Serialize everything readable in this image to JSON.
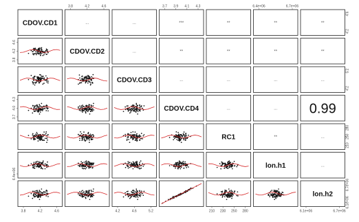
{
  "chart_data": {
    "type": "scatter",
    "title": "",
    "variables": [
      "CDOV.CD1",
      "CDOV.CD2",
      "CDOV.CD3",
      "CDOV.CD4",
      "RC1",
      "lon.h1",
      "lon.h2"
    ],
    "top_axis_ticks": {
      "1": [
        "3.8",
        "4.2",
        "4.6"
      ],
      "3": [
        "3.7",
        "3.9",
        "4.1",
        "4.3"
      ],
      "5": [
        "6.4e+06",
        "6.7e+06"
      ]
    },
    "bottom_axis_ticks": {
      "0": [
        "3.8",
        "4.2",
        "4.6"
      ],
      "2": [
        "4.2",
        "4.6",
        "5.2"
      ],
      "4": [
        "210",
        "230",
        "250",
        "280"
      ],
      "6": [
        "6.1e+06",
        "6.7e+06"
      ]
    },
    "left_axis_ticks": {
      "1": [
        "3.8",
        "4.2",
        "4.6"
      ],
      "3": [
        "3.7",
        "4.0",
        "4.3"
      ],
      "5": [
        "6.4e+06"
      ]
    },
    "right_axis_ticks": {
      "0": [
        "4.2",
        "4.6"
      ],
      "2": [
        "4.2",
        "5.2"
      ],
      "4": [
        "210",
        "250",
        "280"
      ],
      "6": [
        "6.1e+06",
        "6.7e+06"
      ]
    },
    "upper_correlations": [
      {
        "row": 0,
        "col": 1,
        "text": "..."
      },
      {
        "row": 0,
        "col": 2,
        "text": "..."
      },
      {
        "row": 0,
        "col": 3,
        "text": "***"
      },
      {
        "row": 0,
        "col": 4,
        "text": "**"
      },
      {
        "row": 0,
        "col": 5,
        "text": "**"
      },
      {
        "row": 0,
        "col": 6,
        "text": "**"
      },
      {
        "row": 1,
        "col": 2,
        "text": "..."
      },
      {
        "row": 1,
        "col": 3,
        "text": "**"
      },
      {
        "row": 1,
        "col": 4,
        "text": "**"
      },
      {
        "row": 1,
        "col": 5,
        "text": "**"
      },
      {
        "row": 1,
        "col": 6,
        "text": "**"
      },
      {
        "row": 2,
        "col": 3,
        "text": "..."
      },
      {
        "row": 2,
        "col": 4,
        "text": "..."
      },
      {
        "row": 2,
        "col": 5,
        "text": "..."
      },
      {
        "row": 2,
        "col": 6,
        "text": "..."
      },
      {
        "row": 3,
        "col": 4,
        "text": "..."
      },
      {
        "row": 3,
        "col": 5,
        "text": "..."
      },
      {
        "row": 3,
        "col": 6,
        "text": "0.99",
        "emphasis": true
      },
      {
        "row": 4,
        "col": 5,
        "text": "**"
      },
      {
        "row": 4,
        "col": 6,
        "text": "..."
      },
      {
        "row": 5,
        "col": 6,
        "text": "..."
      }
    ],
    "strong_pair": {
      "row": 6,
      "col": 3,
      "correlation": 0.99
    },
    "point_color": "#111111",
    "fit_line_color": "#d62728",
    "grid": false
  }
}
